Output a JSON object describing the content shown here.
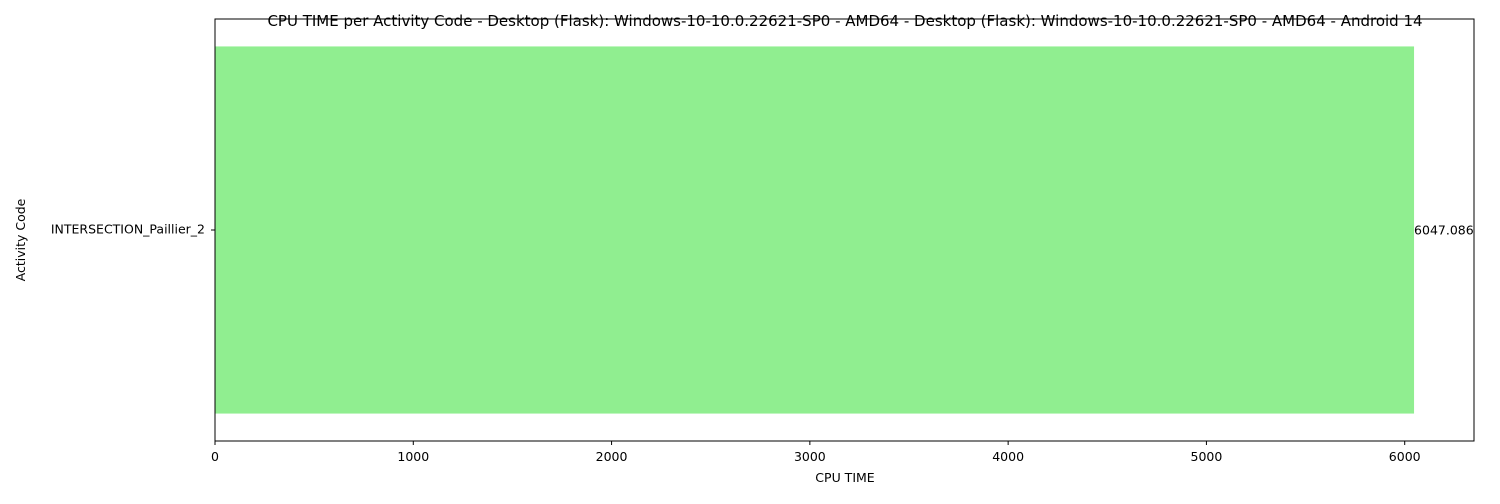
{
  "chart_data": {
    "type": "bar",
    "orientation": "horizontal",
    "title": "CPU TIME per Activity Code - Desktop (Flask): Windows-10-10.0.22621-SP0 - AMD64 - Desktop (Flask): Windows-10-10.0.22621-SP0 - AMD64 - Android 14",
    "xlabel": "CPU TIME",
    "ylabel": "Activity Code",
    "categories": [
      "INTERSECTION_Paillier_2"
    ],
    "values": [
      6047.086
    ],
    "data_labels": [
      "6047.086"
    ],
    "xlim": [
      0,
      6349.44
    ],
    "xticks": [
      0,
      1000,
      2000,
      3000,
      4000,
      5000,
      6000
    ],
    "grid": false,
    "legend": false,
    "colors": {
      "bar": "#90ee90",
      "axes": "#000000",
      "background": "#ffffff"
    }
  }
}
